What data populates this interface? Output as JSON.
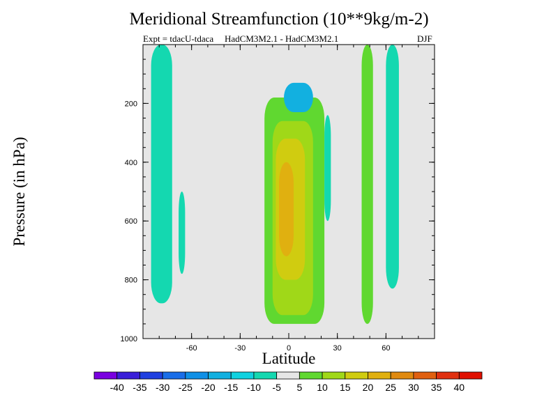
{
  "chart_data": {
    "type": "heatmap",
    "title": "Meridional Streamfunction (10**9kg/m-2)",
    "subtitle_left": "Expt = tdacU-tdaca",
    "subtitle_center": "HadCM3M2.1 - HadCM3M2.1",
    "subtitle_right": "DJF",
    "xlabel": "Latitude",
    "ylabel": "Pressure (in hPa)",
    "xlim": [
      -90,
      90
    ],
    "ylim": [
      1000,
      0
    ],
    "x_ticks": [
      "-60",
      "-30",
      "0",
      "30",
      "60"
    ],
    "x_tick_values": [
      -60,
      -30,
      0,
      30,
      60
    ],
    "y_ticks": [
      "200",
      "400",
      "600",
      "800",
      "1000"
    ],
    "y_tick_values": [
      200,
      400,
      600,
      800,
      1000
    ],
    "background_color": "#e6e6e6",
    "colorbar": {
      "labels": [
        "-40",
        "-35",
        "-30",
        "-25",
        "-20",
        "-15",
        "-10",
        "-5",
        "5",
        "10",
        "15",
        "20",
        "25",
        "30",
        "35",
        "40"
      ],
      "colors": [
        "#7a00e0",
        "#3a1fd8",
        "#2040e0",
        "#1a6ee8",
        "#1090e6",
        "#12b0e0",
        "#10d2e0",
        "#14d8b0",
        "#e6e6e6",
        "#60d830",
        "#a0d818",
        "#d0cc10",
        "#e0b010",
        "#e08a10",
        "#e06010",
        "#e03010",
        "#e01000"
      ]
    },
    "regions": [
      {
        "name": "sh-high-lat-negative",
        "level": "-10 to -5",
        "color": "#14d8b0",
        "lat": [
          -85,
          -72
        ],
        "p": [
          0,
          880
        ]
      },
      {
        "name": "sh-small-negative",
        "level": "-10 to -5",
        "color": "#14d8b0",
        "lat": [
          -68,
          -64
        ],
        "p": [
          500,
          780
        ]
      },
      {
        "name": "tropical-positive-outer",
        "level": "5 to 10",
        "color": "#60d830",
        "lat": [
          -15,
          22
        ],
        "p": [
          180,
          950
        ]
      },
      {
        "name": "tropical-positive-mid",
        "level": "10 to 15",
        "color": "#a0d818",
        "lat": [
          -10,
          15
        ],
        "p": [
          260,
          920
        ]
      },
      {
        "name": "tropical-positive-core",
        "level": "15 to 20",
        "color": "#d0cc10",
        "lat": [
          -8,
          10
        ],
        "p": [
          320,
          800
        ]
      },
      {
        "name": "tropical-positive-peak",
        "level": "20 to 25",
        "color": "#e0b010",
        "lat": [
          -6,
          3
        ],
        "p": [
          400,
          720
        ]
      },
      {
        "name": "upper-negative",
        "level": "-15 to -10",
        "color": "#12b0e0",
        "lat": [
          -3,
          15
        ],
        "p": [
          130,
          230
        ]
      },
      {
        "name": "nh-midlat-negative",
        "level": "-10 to -5",
        "color": "#14d8b0",
        "lat": [
          22,
          26
        ],
        "p": [
          240,
          600
        ]
      },
      {
        "name": "nh-positive-column",
        "level": "5 to 10",
        "color": "#60d830",
        "lat": [
          45,
          52
        ],
        "p": [
          0,
          950
        ]
      },
      {
        "name": "nh-high-lat-negative",
        "level": "-10 to -5",
        "color": "#14d8b0",
        "lat": [
          60,
          68
        ],
        "p": [
          0,
          830
        ]
      }
    ]
  }
}
